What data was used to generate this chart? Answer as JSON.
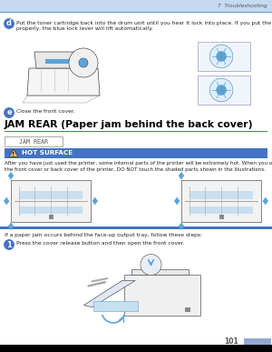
{
  "page_num": "101",
  "chapter": "7  Troubleshooting",
  "header_bar_color": "#c5d9f1",
  "header_line_color": "#5b9bd5",
  "footer_bar_color": "#000000",
  "page_num_box_color": "#92a8d1",
  "background_color": "#ffffff",
  "section_line_color": "#4472c4",
  "hot_surface_bar_color": "#4472c4",
  "jam_rear_box_border": "#aaaaaa",
  "step_circle_color": "#4472c4",
  "step_text_color": "#ffffff",
  "body_text_color": "#222222",
  "blue_accent": "#5ba3d9",
  "light_blue_fill": "#c8dff0",
  "step_d_text": "Put the toner cartridge back into the drum unit until you hear it lock into place. If you put the cartridge in\nproperly, the blue lock lever will lift automatically.",
  "step_e_text": "Close the front cover.",
  "section_title": "JAM REAR (Paper jam behind the back cover)",
  "jam_rear_label": "JAM REAR",
  "hot_surface_label": "HOT SURFACE",
  "hot_surface_body": "After you have just used the printer, some internal parts of the printer will be extremely hot. When you open\nthe front cover or back cover of the printer, DO NOT touch the shaded parts shown in the illustrations.",
  "face_up_text": "If a paper jam occurs behind the face-up output tray, follow these steps:",
  "step_1_text": "Press the cover release button and then open the front cover."
}
